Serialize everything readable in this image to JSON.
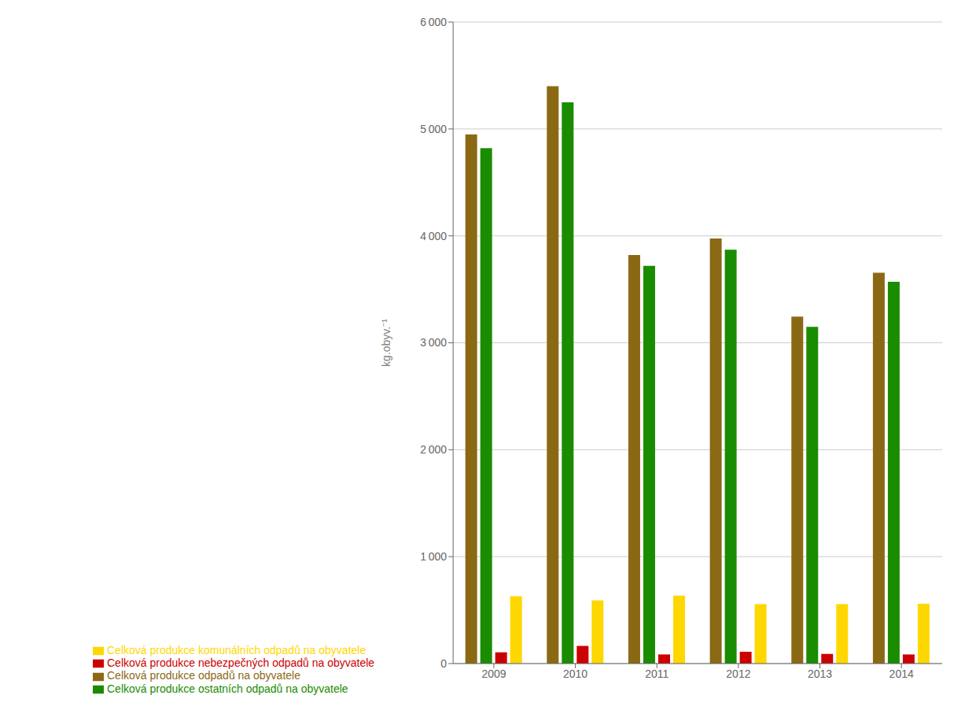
{
  "chart_data": {
    "type": "bar",
    "categories": [
      "2009",
      "2010",
      "2011",
      "2012",
      "2013",
      "2014"
    ],
    "series": [
      {
        "name": "Celková produkce odpadů na obyvatele",
        "color": "#8B6914",
        "values": [
          4950,
          5400,
          3820,
          3975,
          3245,
          3655
        ]
      },
      {
        "name": "Celková produkce ostatních odpadů na obyvatele",
        "color": "#1a8c00",
        "values": [
          4820,
          5250,
          3720,
          3870,
          3150,
          3570
        ]
      },
      {
        "name": "Celková produkce nebezpečných odpadů na obyvatele",
        "color": "#cc0000",
        "values": [
          105,
          165,
          85,
          110,
          90,
          85
        ]
      },
      {
        "name": "Celková produkce komunálních odpadů na obyvatele",
        "color": "#ffd700",
        "values": [
          630,
          590,
          635,
          555,
          555,
          560
        ]
      }
    ],
    "ylabel": "kg.obyv.⁻¹",
    "ylim": [
      0,
      6000
    ],
    "yticks": [
      0,
      {
        "value": 1000,
        "label": "1 000"
      },
      {
        "value": 2000,
        "label": "2 000"
      },
      {
        "value": 3000,
        "label": "3 000"
      },
      {
        "value": 4000,
        "label": "4 000"
      },
      {
        "value": 5000,
        "label": "5 000"
      },
      {
        "value": 6000,
        "label": "6 000"
      }
    ],
    "grid": true,
    "legend": "bottom left"
  }
}
